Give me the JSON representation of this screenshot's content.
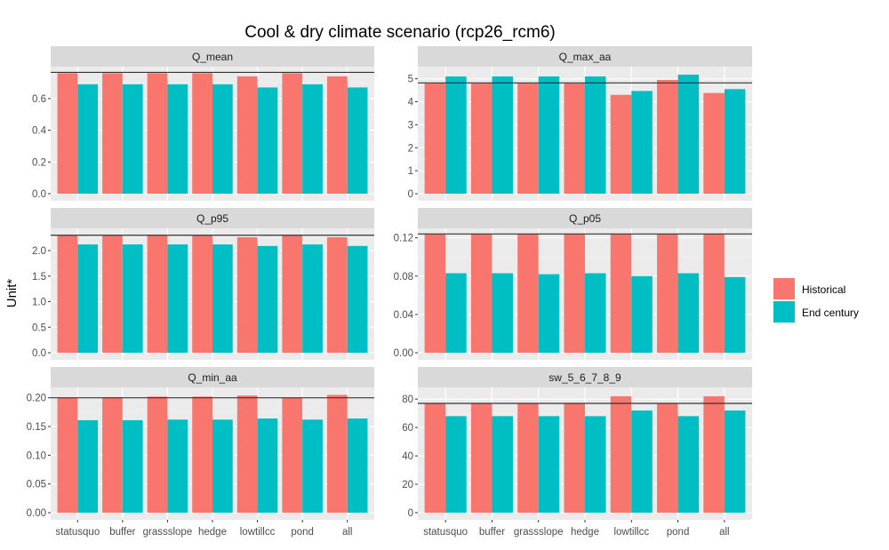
{
  "chart_data": [
    {
      "type": "bar",
      "title": "Q_mean",
      "categories": [
        "statusquo",
        "buffer",
        "grassslope",
        "hedge",
        "lowtillcc",
        "pond",
        "all"
      ],
      "series": [
        {
          "name": "Historical",
          "values": [
            0.76,
            0.76,
            0.76,
            0.76,
            0.74,
            0.76,
            0.74
          ]
        },
        {
          "name": "End century",
          "values": [
            0.69,
            0.69,
            0.69,
            0.69,
            0.67,
            0.69,
            0.67
          ]
        }
      ],
      "hline": 0.765,
      "ylim": [
        0,
        0.79
      ],
      "yticks": [
        0,
        0.2,
        0.4,
        0.6
      ],
      "ytick_labels": [
        "0.0",
        "0.2",
        "0.4",
        "0.6"
      ]
    },
    {
      "type": "bar",
      "title": "Q_max_aa",
      "categories": [
        "statusquo",
        "buffer",
        "grassslope",
        "hedge",
        "lowtillcc",
        "pond",
        "all"
      ],
      "series": [
        {
          "name": "Historical",
          "values": [
            4.8,
            4.8,
            4.8,
            4.8,
            4.3,
            4.95,
            4.38
          ]
        },
        {
          "name": "End century",
          "values": [
            5.1,
            5.1,
            5.1,
            5.1,
            4.47,
            5.18,
            4.55
          ]
        }
      ],
      "hline": 4.82,
      "ylim": [
        0,
        5.45
      ],
      "yticks": [
        0,
        1,
        2,
        3,
        4,
        5
      ],
      "ytick_labels": [
        "0",
        "1",
        "2",
        "3",
        "4",
        "5"
      ]
    },
    {
      "type": "bar",
      "title": "Q_p95",
      "categories": [
        "statusquo",
        "buffer",
        "grassslope",
        "hedge",
        "lowtillcc",
        "pond",
        "all"
      ],
      "series": [
        {
          "name": "Historical",
          "values": [
            2.3,
            2.3,
            2.3,
            2.3,
            2.26,
            2.3,
            2.26
          ]
        },
        {
          "name": "End century",
          "values": [
            2.12,
            2.12,
            2.12,
            2.12,
            2.09,
            2.12,
            2.09
          ]
        }
      ],
      "hline": 2.3,
      "ylim": [
        0,
        2.4
      ],
      "yticks": [
        0,
        0.5,
        1,
        1.5,
        2
      ],
      "ytick_labels": [
        "0.0",
        "0.5",
        "1.0",
        "1.5",
        "2.0"
      ]
    },
    {
      "type": "bar",
      "title": "Q_p05",
      "categories": [
        "statusquo",
        "buffer",
        "grassslope",
        "hedge",
        "lowtillcc",
        "pond",
        "all"
      ],
      "series": [
        {
          "name": "Historical",
          "values": [
            0.124,
            0.124,
            0.124,
            0.124,
            0.124,
            0.124,
            0.124
          ]
        },
        {
          "name": "End century",
          "values": [
            0.083,
            0.083,
            0.082,
            0.083,
            0.08,
            0.083,
            0.079
          ]
        }
      ],
      "hline": 0.124,
      "ylim": [
        0,
        0.128
      ],
      "yticks": [
        0,
        0.04,
        0.08,
        0.12
      ],
      "ytick_labels": [
        "0.00",
        "0.04",
        "0.08",
        "0.12"
      ]
    },
    {
      "type": "bar",
      "title": "Q_min_aa",
      "categories": [
        "statusquo",
        "buffer",
        "grassslope",
        "hedge",
        "lowtillcc",
        "pond",
        "all"
      ],
      "series": [
        {
          "name": "Historical",
          "values": [
            0.2,
            0.201,
            0.202,
            0.202,
            0.204,
            0.2,
            0.205
          ]
        },
        {
          "name": "End century",
          "values": [
            0.161,
            0.161,
            0.162,
            0.162,
            0.164,
            0.162,
            0.164
          ]
        }
      ],
      "hline": 0.2,
      "ylim": [
        0,
        0.215
      ],
      "yticks": [
        0,
        0.05,
        0.1,
        0.15,
        0.2
      ],
      "ytick_labels": [
        "0.00",
        "0.05",
        "0.10",
        "0.15",
        "0.20"
      ]
    },
    {
      "type": "bar",
      "title": "sw_5_6_7_8_9",
      "categories": [
        "statusquo",
        "buffer",
        "grassslope",
        "hedge",
        "lowtillcc",
        "pond",
        "all"
      ],
      "series": [
        {
          "name": "Historical",
          "values": [
            77,
            77,
            77,
            77,
            82,
            77,
            82
          ]
        },
        {
          "name": "End century",
          "values": [
            68,
            68,
            68,
            68,
            72,
            68,
            72
          ]
        }
      ],
      "hline": 77,
      "ylim": [
        0,
        87
      ],
      "yticks": [
        0,
        20,
        40,
        60,
        80
      ],
      "ytick_labels": [
        "0",
        "20",
        "40",
        "60",
        "80"
      ]
    }
  ],
  "title": "Cool & dry climate scenario (rcp26_rcm6)",
  "ylabel": "Unit*",
  "legend": [
    {
      "label": "Historical",
      "color": "#F8766D"
    },
    {
      "label": "End century",
      "color": "#00BFC4"
    }
  ],
  "legend_position": "right"
}
